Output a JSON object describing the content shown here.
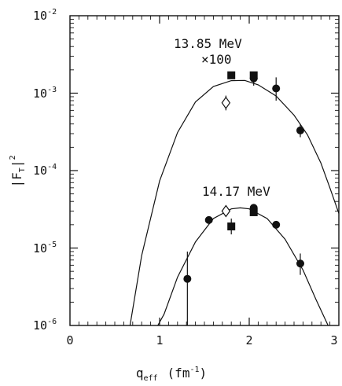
{
  "chart_data": {
    "type": "scatter",
    "title": "",
    "xlabel": "q_eff (fm^-1)",
    "ylabel": "|F_T|^2",
    "xlim": [
      0,
      3
    ],
    "ylim": [
      1e-06,
      0.01
    ],
    "y_scale": "log",
    "grid": false,
    "x_ticks": [
      "0",
      "1",
      "2",
      "3"
    ],
    "y_ticks": [
      {
        "base": "10",
        "exp": "-6",
        "value": 1e-06
      },
      {
        "base": "10",
        "exp": "-5",
        "value": 1e-05
      },
      {
        "base": "10",
        "exp": "-4",
        "value": 0.0001
      },
      {
        "base": "10",
        "exp": "-3",
        "value": 0.001
      },
      {
        "base": "10",
        "exp": "-2",
        "value": 0.01
      }
    ],
    "axis_title": {
      "x_base": "q",
      "x_sub": "eff",
      "x_unit_open": "(fm",
      "x_unit_exp": "-1",
      "x_unit_close": ")",
      "y_left": "|F",
      "y_sub": "T",
      "y_right": "|",
      "y_exp": "2"
    },
    "annotations": {
      "upper_energy": "13.85 MeV",
      "upper_scale": "×100",
      "lower_energy": "14.17 MeV"
    },
    "series": [
      {
        "group": "13.85 MeV ×100",
        "marker": "circle",
        "points": [
          {
            "x": 2.05,
            "y": 0.00155,
            "yerr_lo": 0.00125,
            "yerr_hi": 0.0019
          },
          {
            "x": 2.3,
            "y": 0.00115,
            "yerr_lo": 0.0008,
            "yerr_hi": 0.0016
          },
          {
            "x": 2.57,
            "y": 0.00033,
            "yerr_lo": 0.00027,
            "yerr_hi": 0.0004
          }
        ]
      },
      {
        "group": "13.85 MeV ×100",
        "marker": "square",
        "points": [
          {
            "x": 1.8,
            "y": 0.0017
          },
          {
            "x": 2.05,
            "y": 0.0017
          }
        ]
      },
      {
        "group": "13.85 MeV ×100",
        "marker": "diamond",
        "points": [
          {
            "x": 1.74,
            "y": 0.00075,
            "yerr_lo": 0.0006,
            "yerr_hi": 0.00093
          }
        ]
      },
      {
        "group": "14.17 MeV",
        "marker": "circle",
        "points": [
          {
            "x": 1.31,
            "y": 4e-06,
            "yerr_lo": 1e-06,
            "yerr_hi": 9e-06
          },
          {
            "x": 1.55,
            "y": 2.3e-05
          },
          {
            "x": 2.05,
            "y": 3.3e-05
          },
          {
            "x": 2.3,
            "y": 2e-05
          },
          {
            "x": 2.57,
            "y": 6.3e-06,
            "yerr_lo": 4.5e-06,
            "yerr_hi": 8.5e-06
          }
        ]
      },
      {
        "group": "14.17 MeV",
        "marker": "square",
        "points": [
          {
            "x": 1.8,
            "y": 1.9e-05,
            "yerr_lo": 1.5e-05,
            "yerr_hi": 2.4e-05
          },
          {
            "x": 2.05,
            "y": 2.9e-05
          }
        ]
      },
      {
        "group": "14.17 MeV",
        "marker": "diamond",
        "points": [
          {
            "x": 1.74,
            "y": 3e-05
          }
        ]
      }
    ],
    "curves": [
      {
        "group": "13.85 MeV ×100",
        "points": [
          [
            0.67,
            1e-06
          ],
          [
            0.8,
            8e-06
          ],
          [
            1.0,
            7.35e-05
          ],
          [
            1.2,
            0.00031
          ],
          [
            1.4,
            0.00077
          ],
          [
            1.6,
            0.00122
          ],
          [
            1.8,
            0.00145
          ],
          [
            1.95,
            0.00146
          ],
          [
            2.1,
            0.00128
          ],
          [
            2.3,
            0.00092
          ],
          [
            2.5,
            0.00052
          ],
          [
            2.65,
            0.00029
          ],
          [
            2.8,
            0.000125
          ],
          [
            2.9,
            6e-05
          ],
          [
            3.0,
            2.8e-05
          ]
        ]
      },
      {
        "group": "14.17 MeV",
        "points": [
          [
            0.98,
            1e-06
          ],
          [
            1.05,
            1.4e-06
          ],
          [
            1.2,
            4.2e-06
          ],
          [
            1.4,
            1.2e-05
          ],
          [
            1.6,
            2.4e-05
          ],
          [
            1.8,
            3.2e-05
          ],
          [
            1.9,
            3.3e-05
          ],
          [
            2.0,
            3.2e-05
          ],
          [
            2.2,
            2.4e-05
          ],
          [
            2.4,
            1.3e-05
          ],
          [
            2.6,
            5.2e-06
          ],
          [
            2.75,
            2.1e-06
          ],
          [
            2.88,
            1e-06
          ]
        ]
      }
    ]
  }
}
